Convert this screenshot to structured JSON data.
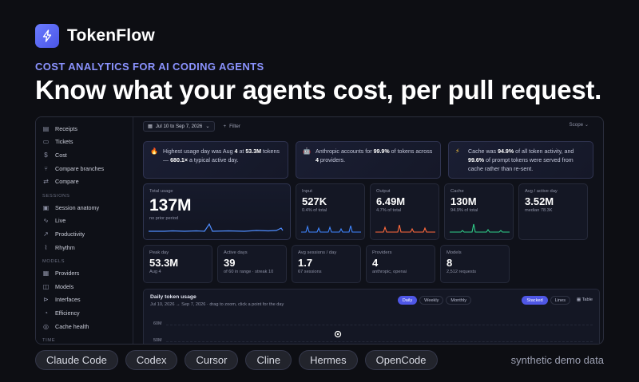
{
  "brand": {
    "name": "TokenFlow",
    "logo_icon": "lightning-bolt-icon"
  },
  "hero": {
    "eyebrow": "COST ANALYTICS FOR AI CODING AGENTS",
    "headline": "Know what your agents cost, per pull request."
  },
  "sidebar": {
    "items_top": [
      {
        "label": "Receipts",
        "icon": "receipt-icon",
        "glyph": "▤"
      },
      {
        "label": "Tickets",
        "icon": "ticket-icon",
        "glyph": "▭"
      },
      {
        "label": "Cost",
        "icon": "dollar-icon",
        "glyph": "$"
      },
      {
        "label": "Compare branches",
        "icon": "branch-icon",
        "glyph": "⑂"
      },
      {
        "label": "Compare",
        "icon": "swap-icon",
        "glyph": "⇄"
      }
    ],
    "section_sessions": "SESSIONS",
    "items_sessions": [
      {
        "label": "Session anatomy",
        "icon": "layers-icon",
        "glyph": "▣"
      },
      {
        "label": "Live",
        "icon": "activity-icon",
        "glyph": "∿"
      },
      {
        "label": "Productivity",
        "icon": "trend-icon",
        "glyph": "↗"
      },
      {
        "label": "Rhythm",
        "icon": "pulse-icon",
        "glyph": "⌇"
      }
    ],
    "section_models": "MODELS",
    "items_models": [
      {
        "label": "Providers",
        "icon": "server-icon",
        "glyph": "▦"
      },
      {
        "label": "Models",
        "icon": "cube-icon",
        "glyph": "◫"
      },
      {
        "label": "Interfaces",
        "icon": "plug-icon",
        "glyph": "⊳"
      },
      {
        "label": "Efficiency",
        "icon": "gauge-icon",
        "glyph": "◔"
      },
      {
        "label": "Cache health",
        "icon": "database-icon",
        "glyph": "◎"
      }
    ],
    "section_time": "TIME"
  },
  "toolbar": {
    "date_range": "Jul 10 to Sep 7, 2026",
    "filter_label": "Filter",
    "scope_label": "Scope"
  },
  "insights": [
    {
      "icon": "flame-icon",
      "glyph": "🔥",
      "color": "#ff8a3d",
      "parts": [
        "Highest usage day was Aug ",
        "4",
        " at ",
        "53.3M",
        " tokens — ",
        "680.1×",
        " a typical active day."
      ]
    },
    {
      "icon": "bot-icon",
      "glyph": "🤖",
      "color": "#9fb4ff",
      "parts": [
        "Anthropic accounts for ",
        "99.9%",
        " of tokens across ",
        "4",
        " providers."
      ]
    },
    {
      "icon": "bolt-icon",
      "glyph": "⚡",
      "color": "#ffc83d",
      "parts": [
        "Cache was ",
        "94.9%",
        " of all token activity, and ",
        "99.6%",
        " of prompt tokens were served from cache rather than re-sent."
      ]
    }
  ],
  "metrics_primary": {
    "total": {
      "label": "Total usage",
      "value": "137M",
      "sub": "no prior period",
      "color": "#4f8dff"
    },
    "input": {
      "label": "Input",
      "value": "527K",
      "sub": "0.4% of total",
      "color": "#3f86ff"
    },
    "output": {
      "label": "Output",
      "value": "6.49M",
      "sub": "4.7% of total",
      "color": "#ff6a3d"
    },
    "cache": {
      "label": "Cache",
      "value": "130M",
      "sub": "94.9% of total",
      "color": "#2fcf8a"
    },
    "avg_active_day": {
      "label": "Avg / active day",
      "value": "3.52M",
      "sub": "median 78.3K"
    }
  },
  "metrics_secondary": [
    {
      "label": "Peak day",
      "value": "53.3M",
      "sub": "Aug 4"
    },
    {
      "label": "Active days",
      "value": "39",
      "sub": "of 60 in range · streak 10"
    },
    {
      "label": "Avg sessions / day",
      "value": "1.7",
      "sub": "67 sessions"
    },
    {
      "label": "Providers",
      "value": "4",
      "sub": "anthropic, openai"
    },
    {
      "label": "Models",
      "value": "8",
      "sub": "2,512 requests"
    }
  ],
  "daily_usage": {
    "title": "Daily token usage",
    "subtitle": "Jul 10, 2026 → Sep 7, 2026 · drag to zoom, click a point for the day",
    "granularity": [
      "Daily",
      "Weekly",
      "Monthly"
    ],
    "granularity_active": "Daily",
    "modes": [
      "Stacked",
      "Lines"
    ],
    "mode_active": "Stacked",
    "table_label": "Table",
    "y_ticks": [
      "60M",
      "50M"
    ]
  },
  "tags": [
    "Claude Code",
    "Codex",
    "Cursor",
    "Cline",
    "Hermes",
    "OpenCode"
  ],
  "footer_note": "synthetic demo data"
}
